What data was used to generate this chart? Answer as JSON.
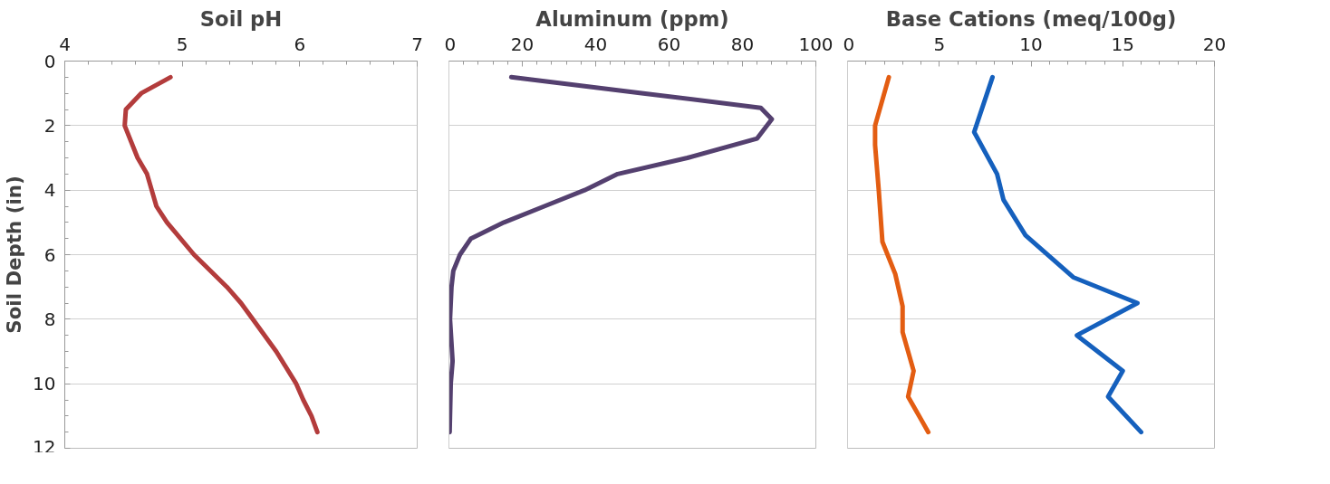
{
  "chart_data": [
    {
      "type": "line",
      "title": "Soil pH",
      "ylabel": "Soil Depth (in)",
      "xlim": [
        4,
        7
      ],
      "xticks": [
        4,
        5,
        6,
        7
      ],
      "ylim": [
        12,
        0
      ],
      "yticks": [
        0,
        2,
        4,
        6,
        8,
        10,
        12
      ],
      "grid": "y",
      "series": [
        {
          "color": "#b33c3c",
          "x": [
            4.9,
            4.65,
            4.52,
            4.51,
            4.62,
            4.7,
            4.74,
            4.78,
            4.87,
            5.1,
            5.38,
            5.5,
            5.6,
            5.8,
            5.97,
            6.03,
            6.1,
            6.15
          ],
          "values": [
            0.5,
            1,
            1.5,
            2,
            3,
            3.5,
            4,
            4.5,
            5,
            6,
            7,
            7.5,
            8,
            9,
            10,
            10.5,
            11,
            11.5
          ]
        }
      ]
    },
    {
      "type": "line",
      "title": "Aluminum (ppm)",
      "xlim": [
        0,
        100
      ],
      "xticks": [
        0,
        20,
        40,
        60,
        80,
        100
      ],
      "ylim": [
        12,
        0
      ],
      "yticks": [
        0,
        2,
        4,
        6,
        8,
        10,
        12
      ],
      "grid": "y",
      "tick_labels": "x",
      "series": [
        {
          "color": "#54406f",
          "x": [
            17,
            53,
            85,
            88,
            84,
            65,
            46,
            37,
            26,
            15,
            6,
            3,
            1.2,
            0.7,
            0.3,
            1,
            0.5,
            0.2
          ],
          "values": [
            0.5,
            1,
            1.45,
            1.8,
            2.4,
            3,
            3.5,
            4,
            4.5,
            5,
            5.5,
            6,
            6.5,
            7,
            8,
            9.3,
            10,
            11.5
          ]
        }
      ]
    },
    {
      "type": "line",
      "title": "Base Cations (meq/100g)",
      "xlim": [
        0,
        20
      ],
      "xticks": [
        0,
        5,
        10,
        15,
        20
      ],
      "ylim": [
        12,
        0
      ],
      "yticks": [
        0,
        2,
        4,
        6,
        8,
        10,
        12
      ],
      "grid": "y",
      "tick_labels": "x",
      "series": [
        {
          "color": "#e35d12",
          "x": [
            2.25,
            1.5,
            1.5,
            1.7,
            1.9,
            2.6,
            3.0,
            3.0,
            3.6,
            3.3,
            4.4
          ],
          "values": [
            0.5,
            2,
            2.6,
            4,
            5.6,
            6.6,
            7.6,
            8.4,
            9.6,
            10.4,
            11.5
          ]
        },
        {
          "color": "#1560bd",
          "x": [
            7.9,
            6.9,
            8.15,
            8.5,
            9.7,
            12.3,
            15.8,
            12.5,
            15.0,
            14.2,
            16.0
          ],
          "values": [
            0.5,
            2.2,
            3.5,
            4.3,
            5.4,
            6.7,
            7.5,
            8.5,
            9.6,
            10.4,
            11.5
          ]
        }
      ]
    }
  ]
}
